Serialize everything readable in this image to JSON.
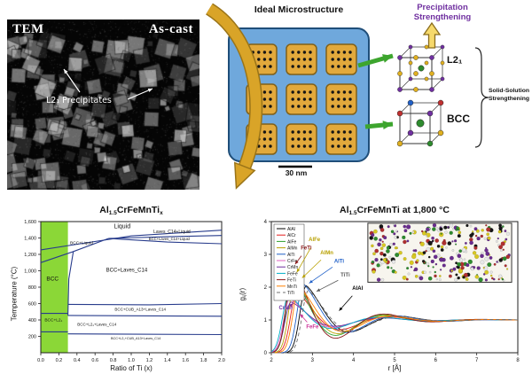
{
  "colors": {
    "gold_arrow": "#D9A428",
    "gold_arrow_edge": "#9A7418",
    "green_arrow": "#3DA52E",
    "up_arrow_fill": "#F6D96B",
    "up_arrow_edge": "#8A6D1D",
    "precipitation_text": "#7030A0"
  },
  "tem": {
    "label_left": "TEM",
    "label_right": "As-cast",
    "annotation": "L2₁ Precipitates"
  },
  "microstructure": {
    "title": "Ideal Microstructure",
    "scale_bar": "30 nm",
    "matrix_color": "#6FA8DC",
    "matrix_edge": "#1F4E79",
    "precipitate_color": "#E2A93C",
    "precipitate_edge": "#806018",
    "grid": {
      "rows": 3,
      "cols": 3,
      "dot_rows": 3,
      "dot_cols": 4
    }
  },
  "strengthening": {
    "precipitation_line1": "Precipitation",
    "precipitation_line2": "Strengthening",
    "solid_solution_line1": "Solid-Solution",
    "solid_solution_line2": "Strengthening",
    "l21_label": "L2₁",
    "bcc_label": "BCC"
  },
  "crystals": {
    "l21": {
      "corner_color": "#7030A0",
      "edge_color": "#E0B020",
      "center_color": "#2E8B2E"
    },
    "bcc": {
      "corner_colors": [
        "#C03030",
        "#7030A0",
        "#E0B020",
        "#2E8B2E",
        "#2060C8",
        "#C03030",
        "#7030A0",
        "#E0B020"
      ],
      "center_color": "#2E8B2E"
    }
  },
  "chart_data": [
    {
      "type": "line",
      "title_parts": [
        "Al",
        "1.5",
        "CrFeMnTi",
        "x"
      ],
      "xlabel": "Ratio of Ti (x)",
      "ylabel": "Temperature (°C)",
      "xlim": [
        0,
        2
      ],
      "ylim": [
        0,
        1600
      ],
      "xticks": [
        "0.0",
        "0.2",
        "0.4",
        "0.6",
        "0.8",
        "1.0",
        "1.2",
        "1.4",
        "1.6",
        "1.8",
        "2.0"
      ],
      "yticks": [
        "200",
        "400",
        "600",
        "800",
        "1,000",
        "1,200",
        "1,400",
        "1,600"
      ],
      "line_color": "#283C8C",
      "grid": false,
      "highlight_region": {
        "x0": 0,
        "x1": 0.3,
        "color": "#7ED321"
      },
      "boundaries": [
        [
          [
            0,
            1255
          ],
          [
            0.5,
            1340
          ],
          [
            1.0,
            1425
          ],
          [
            2,
            1495
          ]
        ],
        [
          [
            0,
            1100
          ],
          [
            0.35,
            1230
          ],
          [
            0.75,
            1395
          ]
        ],
        [
          [
            0.75,
            1395
          ],
          [
            1.4,
            1415
          ],
          [
            2,
            1430
          ]
        ],
        [
          [
            0.75,
            1395
          ],
          [
            1.4,
            1350
          ],
          [
            2,
            1330
          ]
        ],
        [
          [
            0.3,
            455
          ],
          [
            0.31,
            900
          ],
          [
            0.36,
            1235
          ]
        ],
        [
          [
            0.3,
            590
          ],
          [
            1.2,
            585
          ],
          [
            2,
            600
          ]
        ],
        [
          [
            0.3,
            455
          ],
          [
            2,
            445
          ]
        ],
        [
          [
            0.3,
            230
          ],
          [
            2,
            222
          ]
        ],
        [
          [
            0,
            480
          ],
          [
            0.3,
            480
          ]
        ],
        [
          [
            0,
            255
          ],
          [
            0.3,
            255
          ]
        ]
      ],
      "region_labels": [
        {
          "text": "Liquid",
          "x": 0.9,
          "y": 1520,
          "size": 7
        },
        {
          "text": "BCC+Liquid",
          "x": 0.45,
          "y": 1322,
          "size": 4.8
        },
        {
          "text": "Laves_C14+Liquid",
          "x": 1.45,
          "y": 1458,
          "size": 5
        },
        {
          "text": "BCC+Laves_C14+Liquid",
          "x": 1.42,
          "y": 1372,
          "size": 4.2
        },
        {
          "text": "BCC",
          "x": 0.13,
          "y": 880,
          "size": 6.5
        },
        {
          "text": "BCC+Laves_C14",
          "x": 0.95,
          "y": 990,
          "size": 6
        },
        {
          "text": "BCC+CUB_A13+Laves_C14",
          "x": 1.1,
          "y": 515,
          "size": 4.5
        },
        {
          "text": "BCC+L2₁",
          "x": 0.14,
          "y": 385,
          "size": 4.8
        },
        {
          "text": "BCC+L2₁+Laves_C14",
          "x": 0.62,
          "y": 330,
          "size": 4.5
        },
        {
          "text": "BCC+L2₁+CUB_A13+Laves_C14",
          "x": 1.05,
          "y": 160,
          "size": 3.8
        }
      ]
    },
    {
      "type": "line",
      "title_parts": [
        "Al",
        "1.5",
        "CrFeMnTi at 1,800 °C"
      ],
      "xlabel": "r [Å]",
      "ylabel_parts": [
        "g",
        "ij",
        "(r)"
      ],
      "xlim": [
        2,
        8
      ],
      "ylim": [
        0,
        4
      ],
      "xticks": [
        "2",
        "3",
        "4",
        "5",
        "6",
        "7",
        "8"
      ],
      "yticks": [
        "0",
        "1",
        "2",
        "3",
        "4"
      ],
      "legend_position": "top-left",
      "series": [
        {
          "name": "AlAl",
          "color": "#000000",
          "peak_r": 2.85,
          "peak_g": 2.05
        },
        {
          "name": "AlCr",
          "color": "#E41C1C",
          "peak_r": 2.62,
          "peak_g": 1.85
        },
        {
          "name": "AlFe",
          "color": "#2CA02C",
          "peak_r": 2.52,
          "peak_g": 2.35
        },
        {
          "name": "AlMn",
          "color": "#B8A000",
          "peak_r": 2.58,
          "peak_g": 2.2
        },
        {
          "name": "AlTi",
          "color": "#2060C8",
          "peak_r": 2.78,
          "peak_g": 2.1
        },
        {
          "name": "CrFe",
          "color": "#E060C0",
          "peak_r": 2.45,
          "peak_g": 1.65
        },
        {
          "name": "CrMn",
          "color": "#7030A0",
          "peak_r": 2.48,
          "peak_g": 1.55
        },
        {
          "name": "FeFe",
          "color": "#00B0C8",
          "peak_r": 2.42,
          "peak_g": 1.75
        },
        {
          "name": "FeTi",
          "color": "#8B1A1A",
          "peak_r": 2.52,
          "peak_g": 2.6
        },
        {
          "name": "MnTi",
          "color": "#FF8000",
          "peak_r": 2.68,
          "peak_g": 2.0
        },
        {
          "name": "TiTi",
          "color": "#707070",
          "peak_r": 2.9,
          "peak_g": 1.9,
          "dash": "4 3"
        }
      ],
      "annotations": [
        {
          "text": "FeTi",
          "x": 2.85,
          "y": 3.15,
          "ax": 2.58,
          "ay": 2.7,
          "color": "#8B1A1A"
        },
        {
          "text": "AlFe",
          "x": 3.05,
          "y": 3.4,
          "ax": 2.62,
          "ay": 2.45,
          "color": "#B8A000"
        },
        {
          "text": "AlMn",
          "x": 3.35,
          "y": 3.0,
          "ax": 2.75,
          "ay": 2.28,
          "color": "#B8A000"
        },
        {
          "text": "AlTi",
          "x": 3.65,
          "y": 2.75,
          "ax": 2.92,
          "ay": 2.12,
          "color": "#2060C8"
        },
        {
          "text": "TiTi",
          "x": 3.8,
          "y": 2.32,
          "ax": 3.1,
          "ay": 1.87,
          "color": "#555555"
        },
        {
          "text": "AlAl",
          "x": 4.1,
          "y": 1.92,
          "ax": 3.65,
          "ay": 1.28,
          "color": "#000000"
        },
        {
          "text": "CrMn",
          "x": 2.35,
          "y": 1.32,
          "ax": 2.52,
          "ay": 1.5,
          "color": "#7030A0"
        },
        {
          "text": "FeFe",
          "x": 3.0,
          "y": 0.75,
          "ax": 2.7,
          "ay": 1.18,
          "color": "#CC3399"
        }
      ],
      "inset_atom_colors": [
        "#D8C821",
        "#6A2D8F",
        "#2E8B2E",
        "#151515",
        "#B03030",
        "#E8E8E8"
      ]
    }
  ]
}
